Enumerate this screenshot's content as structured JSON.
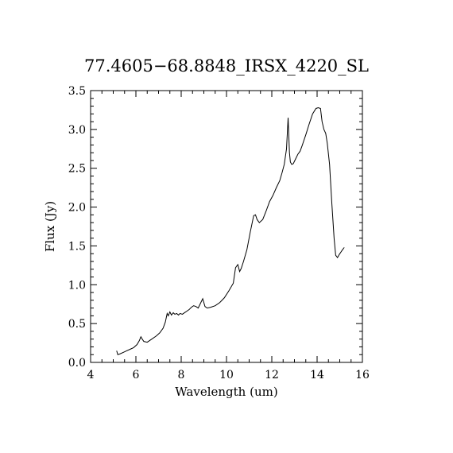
{
  "chart_data": {
    "type": "line",
    "title": "77.4605−68.8848_IRSX_4220_SL",
    "xlabel": "Wavelength (um)",
    "ylabel": "Flux (Jy)",
    "xlim": [
      4,
      16
    ],
    "ylim": [
      0.0,
      3.5
    ],
    "xticks": [
      4,
      6,
      8,
      10,
      12,
      14,
      16
    ],
    "xtick_labels": [
      "4",
      "6",
      "8",
      "10",
      "12",
      "14",
      "16"
    ],
    "yticks": [
      0.0,
      0.5,
      1.0,
      1.5,
      2.0,
      2.5,
      3.0,
      3.5
    ],
    "ytick_labels": [
      "0.0",
      "0.5",
      "1.0",
      "1.5",
      "2.0",
      "2.5",
      "3.0",
      "3.5"
    ],
    "grid": false,
    "series": [
      {
        "x": [
          5.15,
          5.2,
          5.3,
          5.45,
          5.6,
          5.75,
          5.9,
          6.05,
          6.15,
          6.22,
          6.28,
          6.35,
          6.5,
          6.7,
          6.9,
          7.05,
          7.2,
          7.3,
          7.38,
          7.43,
          7.5,
          7.57,
          7.65,
          7.72,
          7.8,
          7.88,
          7.95,
          8.05,
          8.15,
          8.25,
          8.35,
          8.45,
          8.55,
          8.65,
          8.75,
          8.85,
          8.95,
          9.05,
          9.15,
          9.3,
          9.5,
          9.7,
          9.9,
          10.1,
          10.3,
          10.4,
          10.5,
          10.58,
          10.65,
          10.75,
          10.9,
          11.05,
          11.2,
          11.28,
          11.35,
          11.45,
          11.6,
          11.75,
          11.9,
          12.05,
          12.2,
          12.35,
          12.45,
          12.55,
          12.65,
          12.72,
          12.78,
          12.82,
          12.88,
          12.95,
          13.05,
          13.15,
          13.25,
          13.35,
          13.5,
          13.65,
          13.8,
          13.95,
          14.05,
          14.15,
          14.22,
          14.3,
          14.38,
          14.45,
          14.55,
          14.65,
          14.75,
          14.82,
          14.9,
          14.98,
          15.05,
          15.12,
          15.2
        ],
        "y": [
          0.15,
          0.1,
          0.11,
          0.13,
          0.15,
          0.17,
          0.19,
          0.23,
          0.28,
          0.33,
          0.3,
          0.27,
          0.26,
          0.3,
          0.34,
          0.38,
          0.44,
          0.52,
          0.63,
          0.6,
          0.65,
          0.61,
          0.64,
          0.62,
          0.63,
          0.61,
          0.63,
          0.62,
          0.64,
          0.66,
          0.68,
          0.71,
          0.73,
          0.72,
          0.7,
          0.76,
          0.82,
          0.72,
          0.7,
          0.71,
          0.73,
          0.77,
          0.83,
          0.92,
          1.02,
          1.22,
          1.26,
          1.17,
          1.21,
          1.3,
          1.45,
          1.68,
          1.89,
          1.9,
          1.84,
          1.8,
          1.84,
          1.95,
          2.07,
          2.15,
          2.25,
          2.34,
          2.44,
          2.55,
          2.75,
          3.15,
          2.7,
          2.58,
          2.55,
          2.56,
          2.62,
          2.68,
          2.72,
          2.8,
          2.93,
          3.07,
          3.2,
          3.27,
          3.28,
          3.27,
          3.1,
          3.0,
          2.95,
          2.82,
          2.55,
          2.05,
          1.6,
          1.38,
          1.35,
          1.39,
          1.42,
          1.45,
          1.48
        ]
      }
    ]
  }
}
